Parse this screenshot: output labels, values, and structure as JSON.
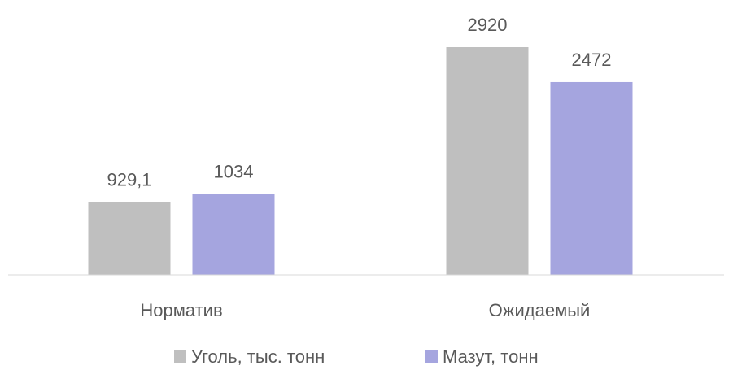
{
  "chart_data": {
    "type": "bar",
    "categories": [
      "Норматив",
      "Ожидаемый"
    ],
    "series": [
      {
        "name": "Уголь, тыс. тонн",
        "color": "#bfbfbf",
        "values": [
          929.1,
          2920
        ],
        "value_labels": [
          "929,1",
          "2920"
        ]
      },
      {
        "name": "Мазут, тонн",
        "color": "#a5a5df",
        "values": [
          1034,
          2472
        ]
      }
    ],
    "legend": "bottom"
  }
}
